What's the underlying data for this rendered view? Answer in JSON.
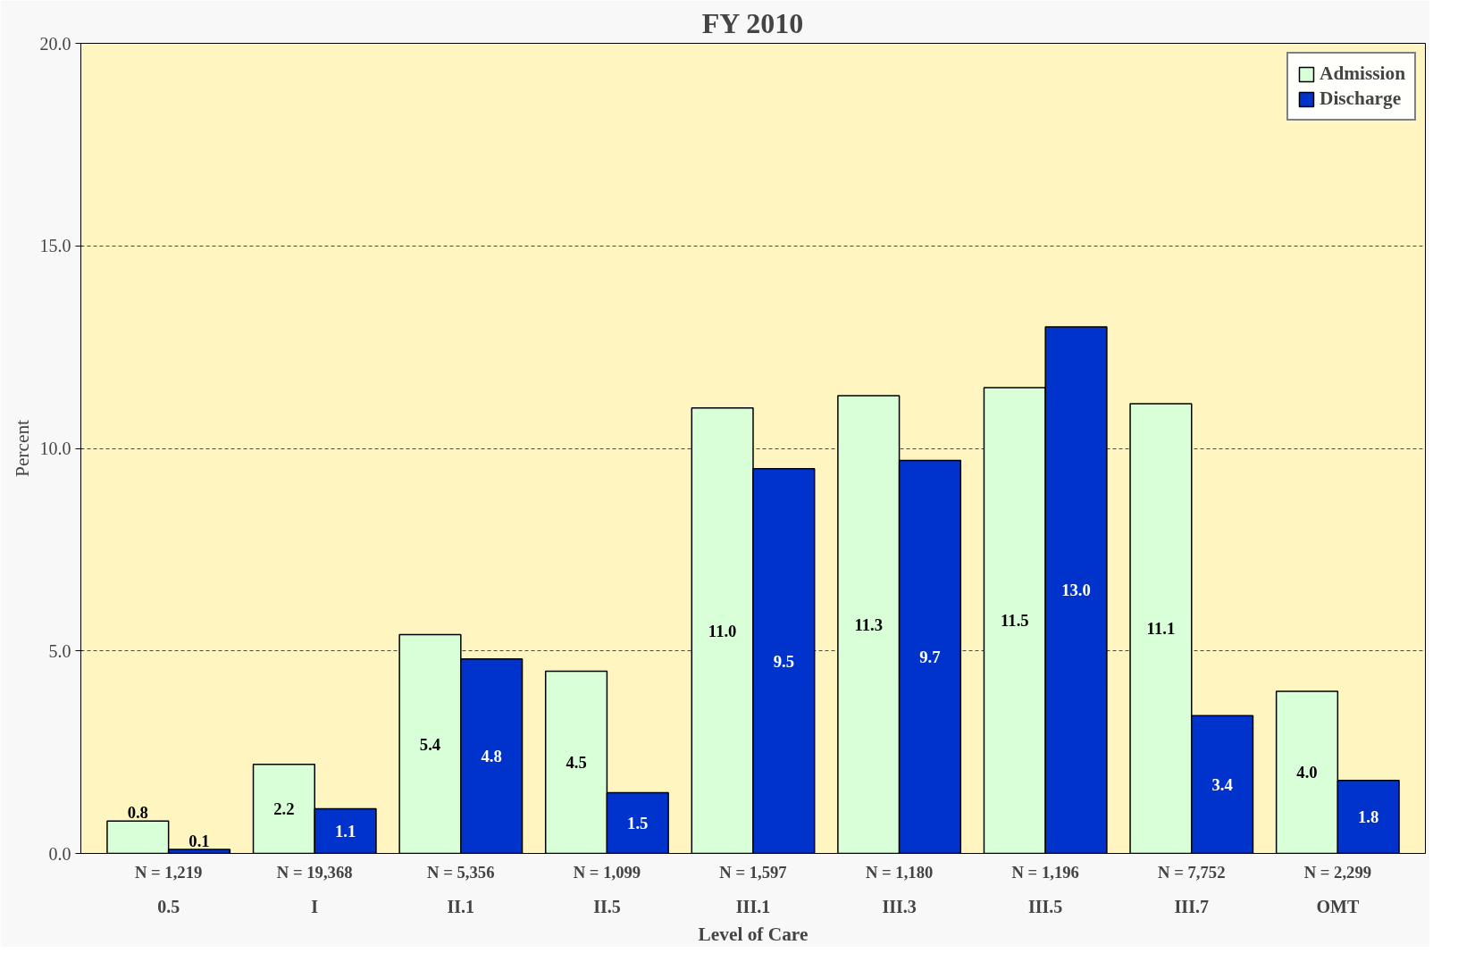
{
  "chart_data": {
    "type": "bar",
    "title": "FY 2010",
    "xlabel": "Level of Care",
    "ylabel": "Percent",
    "categories": [
      "0.5",
      "I",
      "II.1",
      "II.5",
      "III.1",
      "III.3",
      "III.5",
      "III.7",
      "OMT"
    ],
    "series": [
      {
        "name": "Admission",
        "color": "#d8ffd8",
        "values": [
          0.8,
          2.2,
          5.4,
          4.5,
          11.0,
          11.3,
          11.5,
          11.1,
          4.0
        ],
        "value_labels": [
          "0.8",
          "2.2",
          "5.4",
          "4.5",
          "11.0",
          "11.3",
          "11.5",
          "11.1",
          "4.0"
        ]
      },
      {
        "name": "Discharge",
        "color": "#0033cc",
        "values": [
          0.1,
          1.1,
          4.8,
          1.5,
          9.5,
          9.7,
          13.0,
          3.4,
          1.8
        ],
        "value_labels": [
          "0.1",
          "1.1",
          "4.8",
          "1.5",
          "9.5",
          "9.7",
          "13.0",
          "3.4",
          "1.8"
        ]
      }
    ],
    "ylim": [
      0,
      20
    ],
    "yticks": [
      {
        "value": 0,
        "label": "0.0"
      },
      {
        "value": 5,
        "label": "5.0"
      },
      {
        "value": 10,
        "label": "10.0"
      },
      {
        "value": 15,
        "label": "15.0"
      },
      {
        "value": 20,
        "label": "20.0"
      }
    ],
    "grid": "y",
    "legend": "top right",
    "annotations": [
      "N = 1,219",
      "N = 19,368",
      "N = 5,356",
      "N = 1,099",
      "N = 1,597",
      "N = 1,180",
      "N = 1,196",
      "N = 7,752",
      "N = 2,299"
    ]
  }
}
